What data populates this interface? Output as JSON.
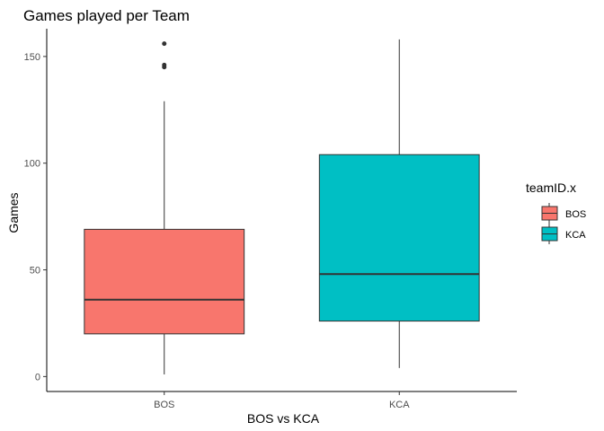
{
  "chart_data": {
    "type": "boxplot",
    "title": "Games played per Team",
    "xlabel": "BOS vs KCA",
    "ylabel": "Games",
    "ylim": [
      -7,
      163
    ],
    "yticks": [
      0,
      50,
      100,
      150
    ],
    "grid": false,
    "legend": {
      "title": "teamID.x",
      "placement": "right",
      "entries": [
        "BOS",
        "KCA"
      ]
    },
    "categories": [
      "BOS",
      "KCA"
    ],
    "boxes": [
      {
        "category": "BOS",
        "color": "#F8766D",
        "min": 1,
        "q1": 20,
        "median": 36,
        "q3": 69,
        "max": 129,
        "outliers": [
          145,
          146,
          156
        ]
      },
      {
        "category": "KCA",
        "color": "#00BFC4",
        "min": 4,
        "q1": 26,
        "median": 48,
        "q3": 104,
        "max": 158,
        "outliers": []
      }
    ]
  }
}
